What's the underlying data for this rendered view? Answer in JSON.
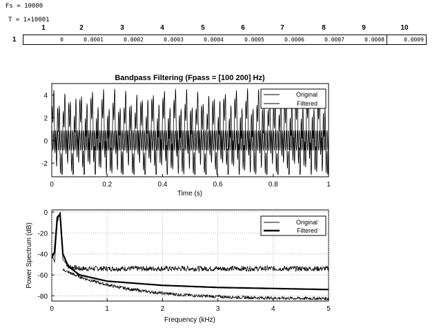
{
  "workspace": {
    "fs_line": "Fs = 10000",
    "t_line": "T = 1×10001"
  },
  "array_viewer": {
    "column_headers": [
      "1",
      "2",
      "3",
      "4",
      "5",
      "6",
      "7",
      "8",
      "9",
      "10"
    ],
    "row_header": "1",
    "row_values": [
      "0",
      "0.0001",
      "0.0002",
      "0.0003",
      "0.0004",
      "0.0005",
      "0.0006",
      "0.0007",
      "0.0008",
      "0.0009"
    ]
  },
  "chart_data": [
    {
      "type": "line",
      "title": "Bandpass Filtering  (Fpass = [100 200] Hz)",
      "xlabel": "Time (s)",
      "ylabel": "",
      "xlim": [
        0,
        1
      ],
      "ylim": [
        -3.2,
        5
      ],
      "xticks": [
        "0",
        "0.2",
        "0.4",
        "0.6",
        "0.8",
        "1"
      ],
      "yticks": [
        "-2",
        "0",
        "2",
        "4"
      ],
      "grid": false,
      "legend": "top-right",
      "series": [
        {
          "name": "Original",
          "color": "#000000",
          "description_values": {
            "x_start": 0,
            "x_end": 1,
            "y_min": -3,
            "y_max": 4.6
          }
        },
        {
          "name": "Filtered",
          "color": "#000000",
          "description_values": {
            "x_start": 0,
            "x_end": 1,
            "y_min": -1,
            "y_max": 1
          }
        }
      ]
    },
    {
      "type": "line",
      "title": "",
      "xlabel": "Frequency (kHz)",
      "ylabel": "Power Spectrum (dB)",
      "xlim": [
        0,
        5
      ],
      "ylim": [
        -85,
        2
      ],
      "xticks": [
        "0",
        "1",
        "2",
        "3",
        "4",
        "5"
      ],
      "yticks": [
        "0",
        "-20",
        "-40",
        "-60",
        "-80"
      ],
      "grid": true,
      "legend": "top-right",
      "series": [
        {
          "name": "Original",
          "color": "#000000",
          "x": [
            0,
            0.05,
            0.1,
            0.15,
            0.2,
            0.3,
            0.5,
            1,
            2,
            3,
            4,
            5
          ],
          "y": [
            -40,
            -48,
            -10,
            0,
            -45,
            -52,
            -54,
            -54,
            -54,
            -54,
            -54,
            -54
          ]
        },
        {
          "name": "Filtered",
          "color": "#000000",
          "x": [
            0,
            0.05,
            0.1,
            0.15,
            0.2,
            0.3,
            0.5,
            1,
            2,
            3,
            4,
            5
          ],
          "y": [
            -44,
            -38,
            -5,
            -2,
            -40,
            -52,
            -60,
            -66,
            -70,
            -72,
            -73,
            -74
          ]
        }
      ]
    }
  ]
}
